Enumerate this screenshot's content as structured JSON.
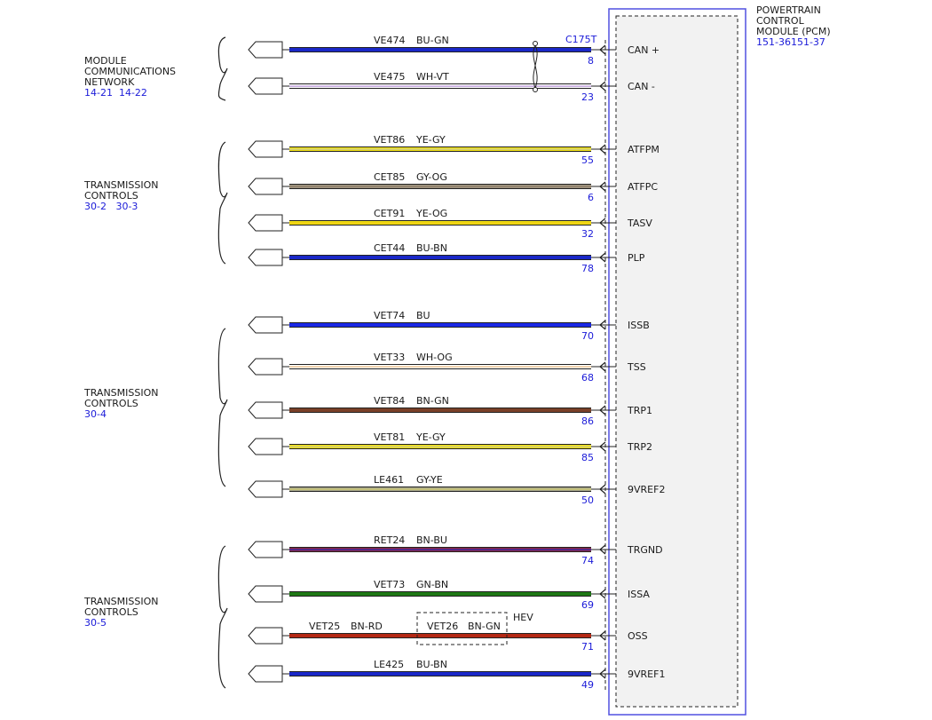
{
  "module": {
    "name_lines": [
      "POWERTRAIN",
      "CONTROL",
      "MODULE (PCM)"
    ],
    "ref": "151-36151-37",
    "connector": "C175T"
  },
  "groups": [
    {
      "lines": [
        "MODULE",
        "COMMUNICATIONS",
        "NETWORK"
      ],
      "ref": "14-21  14-22"
    },
    {
      "lines": [
        "TRANSMISSION",
        "CONTROLS"
      ],
      "ref": "30-2   30-3"
    },
    {
      "lines": [
        "TRANSMISSION",
        "CONTROLS"
      ],
      "ref": "30-4"
    },
    {
      "lines": [
        "TRANSMISSION",
        "CONTROLS"
      ],
      "ref": "30-5"
    }
  ],
  "circuits": [
    {
      "circuit": "VE474",
      "color_code": "BU-GN",
      "pin": "8",
      "signal": "CAN +",
      "colors": [
        "#1a28c8",
        "#1a28c8"
      ]
    },
    {
      "circuit": "VE475",
      "color_code": "WH-VT",
      "pin": "23",
      "signal": "CAN -",
      "colors": [
        "#ffffff",
        "#b48cd6"
      ]
    },
    {
      "circuit": "VET86",
      "color_code": "YE-GY",
      "pin": "55",
      "signal": "ATFPM",
      "colors": [
        "#f0e014",
        "#c8c896"
      ]
    },
    {
      "circuit": "CET85",
      "color_code": "GY-OG",
      "pin": "6",
      "signal": "ATFPC",
      "colors": [
        "#a09682",
        "#8c7a64"
      ]
    },
    {
      "circuit": "CET91",
      "color_code": "YE-OG",
      "pin": "32",
      "signal": "TASV",
      "colors": [
        "#f0e014",
        "#f0c814"
      ]
    },
    {
      "circuit": "CET44",
      "color_code": "BU-BN",
      "pin": "78",
      "signal": "PLP",
      "colors": [
        "#1a28c8",
        "#1a28c8"
      ]
    },
    {
      "circuit": "VET74",
      "color_code": "BU",
      "pin": "70",
      "signal": "ISSB",
      "colors": [
        "#1a28e6",
        "#1a28e6"
      ]
    },
    {
      "circuit": "VET33",
      "color_code": "WH-OG",
      "pin": "68",
      "signal": "TSS",
      "colors": [
        "#ffffff",
        "#e8b478"
      ]
    },
    {
      "circuit": "VET84",
      "color_code": "BN-GN",
      "pin": "86",
      "signal": "TRP1",
      "colors": [
        "#7a4028",
        "#7a4028"
      ]
    },
    {
      "circuit": "VET81",
      "color_code": "YE-GY",
      "pin": "85",
      "signal": "TRP2",
      "colors": [
        "#f0e014",
        "#c8c896"
      ]
    },
    {
      "circuit": "LE461",
      "color_code": "GY-YE",
      "pin": "50",
      "signal": "9VREF2",
      "colors": [
        "#a8a88c",
        "#d2cc6e"
      ]
    },
    {
      "circuit": "RET24",
      "color_code": "BN-BU",
      "pin": "74",
      "signal": "TRGND",
      "colors": [
        "#8c2846",
        "#2828b4"
      ]
    },
    {
      "circuit": "VET73",
      "color_code": "GN-BN",
      "pin": "69",
      "signal": "ISSA",
      "colors": [
        "#1e7814",
        "#1e7814"
      ]
    },
    {
      "circuit": "VET25",
      "color_code": "BN-RD",
      "pin": "71",
      "signal": "OSS",
      "colors": [
        "#b42814",
        "#b42814"
      ],
      "alt": {
        "circuit": "VET26",
        "color_code": "BN-GN",
        "tag": "HEV"
      }
    },
    {
      "circuit": "LE425",
      "color_code": "BU-BN",
      "pin": "49",
      "signal": "9VREF1",
      "colors": [
        "#1a28c8",
        "#1a28c8"
      ]
    }
  ]
}
